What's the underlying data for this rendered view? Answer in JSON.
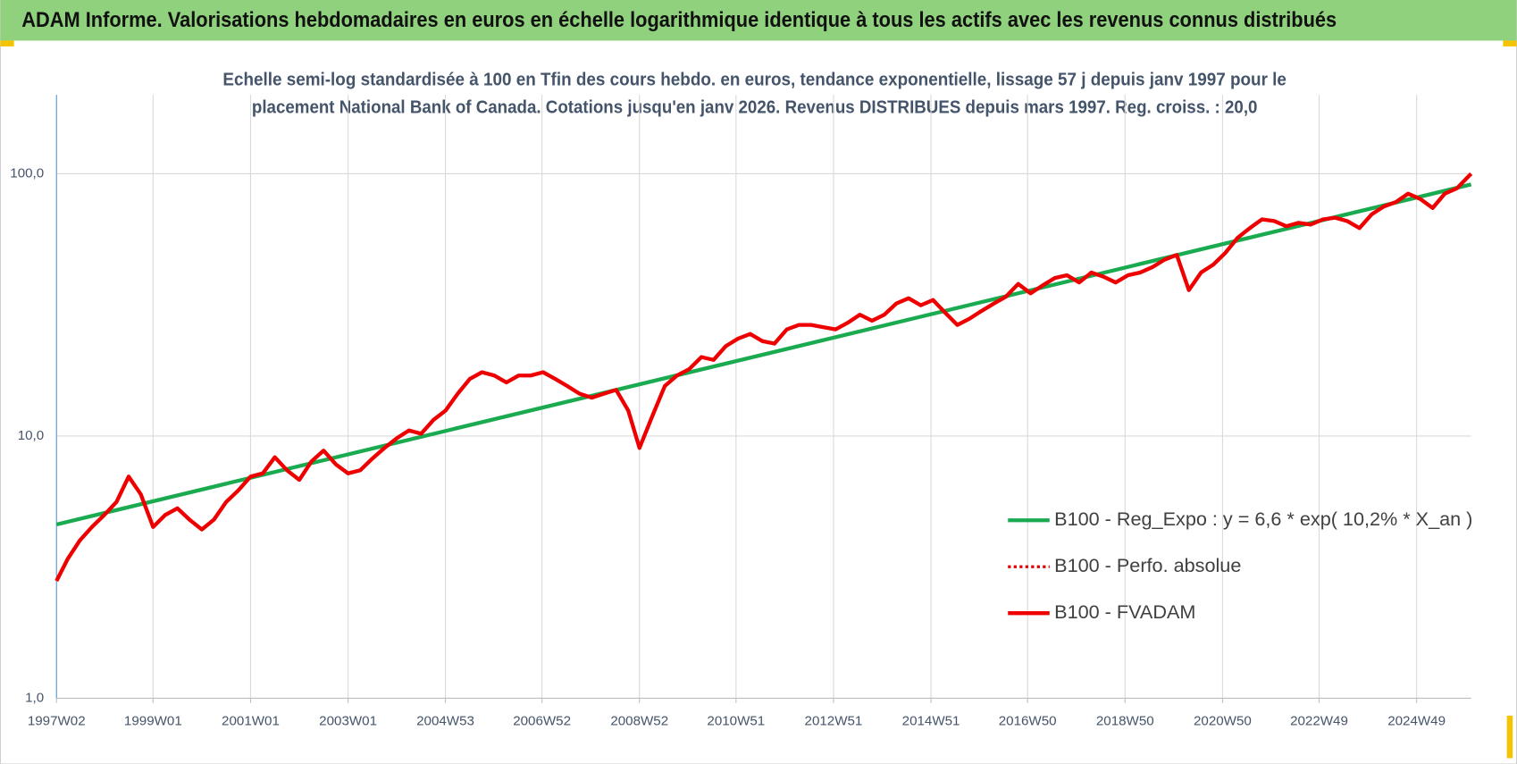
{
  "chart_data": {
    "type": "line",
    "title": "ADAM Informe. Valorisations hebdomadaires en euros en échelle logarithmique identique à tous les actifs avec les revenus connus distribués",
    "subtitle": [
      "Echelle semi-log standardisée à 100 en Tfin des cours hebdo. en euros, tendance exponentielle, lissage 57 j depuis janv 1997 pour le",
      "placement National Bank of Canada. Cotations jusqu'en janv 2026. Revenus DISTRIBUES depuis mars 1997. Reg. croiss. : 20,0"
    ],
    "log_y": true,
    "grid": true,
    "legend": "right",
    "ylim": [
      1,
      200
    ],
    "yticks": [
      {
        "value": 1,
        "label": "1,0"
      },
      {
        "value": 10,
        "label": "10,0"
      },
      {
        "value": 100,
        "label": "100,0"
      }
    ],
    "xlim": [
      "1997W02",
      "2026W03"
    ],
    "xticks": [
      "1997W02",
      "1999W01",
      "2001W01",
      "2003W01",
      "2004W53",
      "2006W52",
      "2008W52",
      "2010W51",
      "2012W51",
      "2014W51",
      "2016W50",
      "2018W50",
      "2020W50",
      "2022W49",
      "2024W49"
    ],
    "series": [
      {
        "name": "B100 - Reg_Expo : y = 6,6 * exp( 10,2% *  X_an )",
        "color": "#1aaa50",
        "x": [
          "1997W02",
          "2026W03"
        ],
        "values": [
          4.6,
          91
        ]
      },
      {
        "name": "B100 - Perfo. absolue",
        "color": "#e00000",
        "dash": "dotted"
      },
      {
        "name": "B100 - FVADAM",
        "color": "#ee0000",
        "x": [
          "1997W02",
          "1997W14",
          "1997W27",
          "1997W40",
          "1998W01",
          "1998W14",
          "1998W27",
          "1998W40",
          "1999W01",
          "1999W14",
          "1999W27",
          "1999W40",
          "2000W01",
          "2000W14",
          "2000W27",
          "2000W40",
          "2001W01",
          "2001W14",
          "2001W27",
          "2001W40",
          "2002W01",
          "2002W14",
          "2002W27",
          "2002W40",
          "2003W01",
          "2003W14",
          "2003W27",
          "2003W40",
          "2004W01",
          "2004W14",
          "2004W27",
          "2004W40",
          "2005W01",
          "2005W14",
          "2005W27",
          "2005W40",
          "2006W01",
          "2006W14",
          "2006W27",
          "2006W40",
          "2007W01",
          "2007W14",
          "2007W27",
          "2007W40",
          "2008W01",
          "2008W14",
          "2008W27",
          "2008W40",
          "2008W52",
          "2009W14",
          "2009W27",
          "2009W40",
          "2010W01",
          "2010W14",
          "2010W27",
          "2010W40",
          "2011W01",
          "2011W14",
          "2011W27",
          "2011W40",
          "2012W01",
          "2012W14",
          "2012W27",
          "2012W40",
          "2013W01",
          "2013W14",
          "2013W27",
          "2013W40",
          "2014W01",
          "2014W14",
          "2014W27",
          "2014W40",
          "2015W01",
          "2015W14",
          "2015W27",
          "2015W40",
          "2016W01",
          "2016W14",
          "2016W27",
          "2016W40",
          "2017W01",
          "2017W14",
          "2017W27",
          "2017W40",
          "2018W01",
          "2018W14",
          "2018W27",
          "2018W40",
          "2019W01",
          "2019W14",
          "2019W27",
          "2019W40",
          "2020W01",
          "2020W14",
          "2020W27",
          "2020W40",
          "2021W01",
          "2021W14",
          "2021W27",
          "2021W40",
          "2022W01",
          "2022W14",
          "2022W27",
          "2022W40",
          "2023W01",
          "2023W14",
          "2023W27",
          "2023W40",
          "2024W01",
          "2024W14",
          "2024W27",
          "2024W40",
          "2025W01",
          "2025W14",
          "2025W27",
          "2025W40",
          "2026W03"
        ],
        "values": [
          2.8,
          3.4,
          4.0,
          4.5,
          5.0,
          5.6,
          7.0,
          6.0,
          4.5,
          5.0,
          5.3,
          4.8,
          4.4,
          4.8,
          5.6,
          6.2,
          7.0,
          7.2,
          8.3,
          7.4,
          6.8,
          8.0,
          8.8,
          7.8,
          7.2,
          7.4,
          8.2,
          9.0,
          9.8,
          10.5,
          10.2,
          11.5,
          12.5,
          14.5,
          16.5,
          17.5,
          17.0,
          16.0,
          17.0,
          17.0,
          17.5,
          16.5,
          15.5,
          14.5,
          14.0,
          14.5,
          15.0,
          12.5,
          9.0,
          12.0,
          15.5,
          17.0,
          18.0,
          20.0,
          19.5,
          22.0,
          23.5,
          24.5,
          23.0,
          22.5,
          25.5,
          26.5,
          26.5,
          26.0,
          25.5,
          27.0,
          29.0,
          27.5,
          29.0,
          32.0,
          33.5,
          31.5,
          33.0,
          29.5,
          26.5,
          28.0,
          30.0,
          32.0,
          34.0,
          38.0,
          35.0,
          37.5,
          40.0,
          41.0,
          38.5,
          42.0,
          40.5,
          38.5,
          41.0,
          42.0,
          44.0,
          47.0,
          49.0,
          36.0,
          42.0,
          45.0,
          50.0,
          57.0,
          62.0,
          67.0,
          66.0,
          63.0,
          65.0,
          64.0,
          67.0,
          68.0,
          66.0,
          62.0,
          70.0,
          75.0,
          78.0,
          84.0,
          80.0,
          74.0,
          84.0,
          88.0,
          100.0
        ]
      }
    ]
  }
}
